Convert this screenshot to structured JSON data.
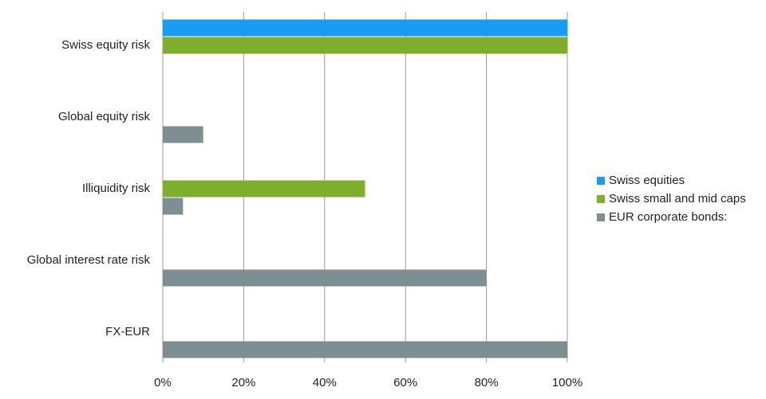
{
  "chart_data": {
    "type": "hbar",
    "categories": [
      "Swiss equity risk",
      "Global equity risk",
      "Illiquidity risk",
      "Global interest rate risk",
      "FX-EUR"
    ],
    "series": [
      {
        "name": "Swiss equities",
        "color": "#1a9cf2",
        "values": [
          100,
          0,
          0,
          0,
          0
        ]
      },
      {
        "name": "Swiss small and mid caps",
        "color": "#7fae2e",
        "values": [
          100,
          0,
          50,
          0,
          0
        ]
      },
      {
        "name": "EUR corporate bonds:",
        "color": "#7e8f94",
        "values": [
          0,
          10,
          5,
          80,
          100
        ]
      }
    ],
    "xlim": [
      0,
      100
    ],
    "xticks": [
      {
        "value": 0,
        "label": "0%"
      },
      {
        "value": 20,
        "label": "20%"
      },
      {
        "value": 40,
        "label": "40%"
      },
      {
        "value": 60,
        "label": "60%"
      },
      {
        "value": 80,
        "label": "80%"
      },
      {
        "value": 100,
        "label": "100%"
      }
    ],
    "grid": true,
    "legend": "right"
  }
}
